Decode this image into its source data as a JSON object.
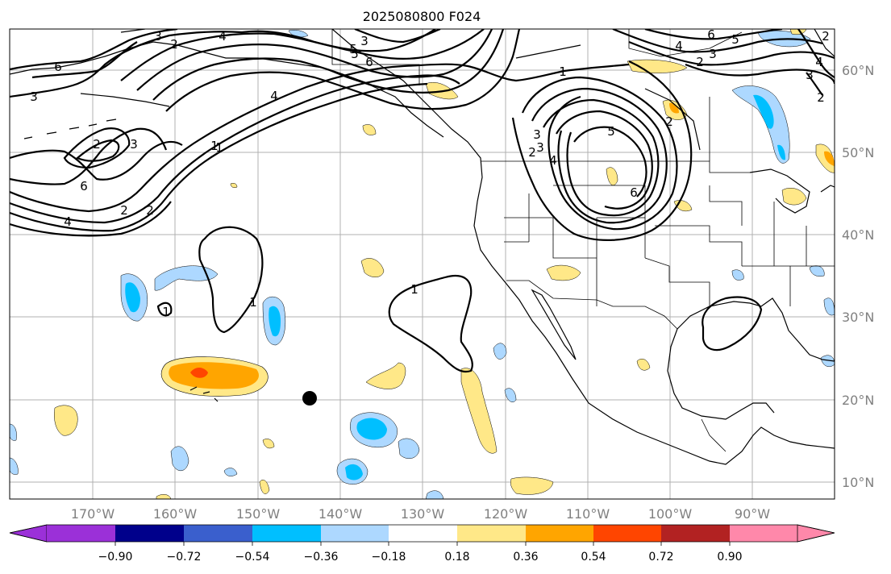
{
  "title": "2025080800 F024",
  "map": {
    "lon_range": [
      -180,
      -80
    ],
    "lat_range": [
      8,
      65
    ],
    "lon_ticks": [
      "170°W",
      "160°W",
      "150°W",
      "140°W",
      "130°W",
      "120°W",
      "110°W",
      "100°W",
      "90°W"
    ],
    "lat_ticks": [
      "60°N",
      "50°N",
      "40°N",
      "30°N",
      "20°N",
      "10°N"
    ],
    "marker": {
      "label_icon": "black-dot",
      "lon": -143.8,
      "lat": 20.2
    },
    "contour_labels": [
      "4",
      "3",
      "5",
      "6",
      "2",
      "6",
      "3",
      "1",
      "5",
      "4",
      "3",
      "2",
      "1",
      "6",
      "4",
      "2",
      "2",
      "3",
      "3",
      "1",
      "4",
      "5",
      "2",
      "6",
      "2",
      "1",
      "1",
      "1",
      "6",
      "5",
      "2",
      "2",
      "6",
      "3",
      "4",
      "3",
      "2",
      "4",
      "3"
    ]
  },
  "colorbar": {
    "tick_labels": [
      "−0.90",
      "−0.72",
      "−0.54",
      "−0.36",
      "−0.18",
      "0.18",
      "0.36",
      "0.54",
      "0.72",
      "0.90"
    ],
    "colors": {
      "under": "#9b30d8",
      "c1": "#00008b",
      "c2": "#3a5fcd",
      "c3": "#00bfff",
      "c4": "#add8ff",
      "c5": "#ffffff",
      "c6": "#ffe888",
      "c7": "#ffa500",
      "c8": "#ff4500",
      "c9": "#b22222",
      "over": "#ff88aa"
    }
  }
}
